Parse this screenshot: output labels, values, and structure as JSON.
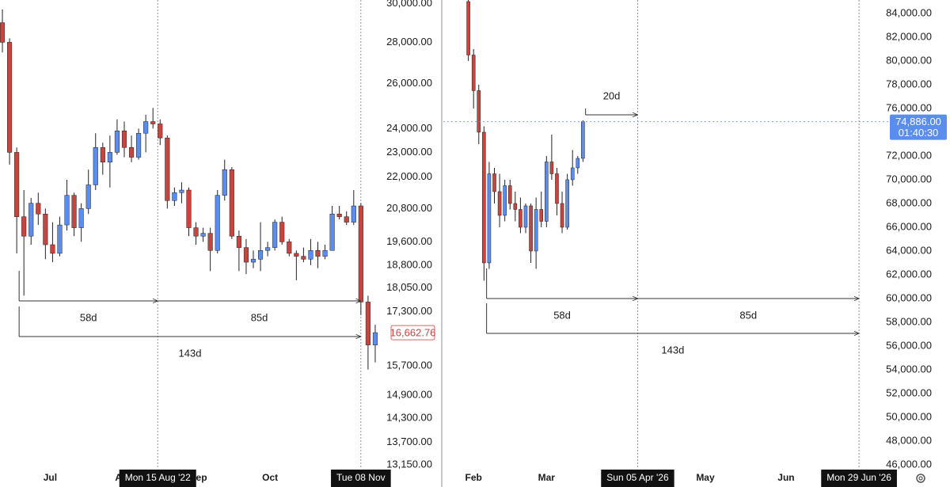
{
  "chart_data": [
    {
      "type": "candlestick",
      "log_scale": true,
      "up_color": "#5b8def",
      "down_color": "#c8453f",
      "xlim": [
        "2022-06-10",
        "2022-11-16"
      ],
      "ylim": [
        13100,
        30200
      ],
      "x": [
        "2022-06-11",
        "2022-06-14",
        "2022-06-17",
        "2022-06-20",
        "2022-06-23",
        "2022-06-26",
        "2022-06-29",
        "2022-07-02",
        "2022-07-05",
        "2022-07-08",
        "2022-07-11",
        "2022-07-14",
        "2022-07-17",
        "2022-07-20",
        "2022-07-23",
        "2022-07-26",
        "2022-07-29",
        "2022-08-01",
        "2022-08-04",
        "2022-08-07",
        "2022-08-10",
        "2022-08-13",
        "2022-08-16",
        "2022-08-19",
        "2022-08-22",
        "2022-08-25",
        "2022-08-28",
        "2022-08-31",
        "2022-09-03",
        "2022-09-06",
        "2022-09-09",
        "2022-09-12",
        "2022-09-15",
        "2022-09-18",
        "2022-09-21",
        "2022-09-24",
        "2022-09-27",
        "2022-09-30",
        "2022-10-03",
        "2022-10-06",
        "2022-10-09",
        "2022-10-12",
        "2022-10-15",
        "2022-10-18",
        "2022-10-21",
        "2022-10-24",
        "2022-10-27",
        "2022-10-30",
        "2022-11-02",
        "2022-11-05",
        "2022-11-08",
        "2022-11-11",
        "2022-11-14"
      ],
      "open": [
        29000,
        28000,
        23000,
        20500,
        19800,
        21000,
        20600,
        19500,
        19200,
        20200,
        21300,
        20100,
        20800,
        21700,
        23200,
        22600,
        23000,
        23900,
        23200,
        22800,
        23800,
        24300,
        24200,
        23600,
        21100,
        21400,
        21500,
        20100,
        19800,
        19900,
        19300,
        21300,
        22300,
        19800,
        19400,
        18900,
        19000,
        19300,
        19400,
        20300,
        19600,
        19200,
        19100,
        19000,
        19300,
        19100,
        19300,
        20600,
        20500,
        20300,
        20900,
        17600,
        16300
      ],
      "high": [
        29700,
        28200,
        23200,
        21500,
        21200,
        21400,
        20800,
        20300,
        20500,
        21900,
        21400,
        21000,
        22300,
        23800,
        23400,
        23700,
        24400,
        24300,
        23700,
        24000,
        24600,
        24900,
        24400,
        23700,
        21600,
        21800,
        21600,
        20300,
        20100,
        20100,
        21500,
        22700,
        22400,
        20000,
        19700,
        19300,
        20300,
        19600,
        20400,
        20500,
        19700,
        19300,
        19400,
        19700,
        19600,
        19500,
        20900,
        20900,
        20700,
        21500,
        21000,
        17800,
        16900
      ],
      "low": [
        27500,
        22500,
        19200,
        17800,
        19500,
        20200,
        19000,
        18900,
        19100,
        20000,
        19800,
        19600,
        20600,
        21500,
        22100,
        21600,
        22900,
        22800,
        22600,
        22700,
        23000,
        24000,
        23300,
        20800,
        20900,
        21000,
        19800,
        19500,
        19600,
        18600,
        19200,
        21100,
        19700,
        18600,
        18500,
        18700,
        18600,
        19100,
        19300,
        19500,
        19100,
        18300,
        18900,
        18800,
        18700,
        19000,
        19300,
        20400,
        20200,
        20200,
        17200,
        15600,
        15800
      ],
      "close": [
        28000,
        23000,
        20500,
        19800,
        21000,
        20600,
        19500,
        19200,
        20200,
        21300,
        20100,
        20800,
        21700,
        23200,
        22600,
        23000,
        23900,
        23200,
        22800,
        23800,
        24300,
        24200,
        23600,
        21100,
        21400,
        21500,
        20100,
        19800,
        19900,
        19300,
        21300,
        22300,
        19800,
        19400,
        18900,
        19000,
        19300,
        19400,
        20300,
        19600,
        19200,
        19100,
        19000,
        19300,
        19100,
        19300,
        20600,
        20500,
        20300,
        20900,
        17600,
        16300,
        16662.76
      ],
      "last_value_label": "16,662.76",
      "yticks": [
        {
          "value": 30000,
          "label": "30,000.00"
        },
        {
          "value": 28000,
          "label": "28,000.00"
        },
        {
          "value": 26000,
          "label": "26,000.00"
        },
        {
          "value": 24000,
          "label": "24,000.00"
        },
        {
          "value": 23000,
          "label": "23,000.00"
        },
        {
          "value": 22000,
          "label": "22,000.00"
        },
        {
          "value": 20800,
          "label": "20,800.00"
        },
        {
          "value": 19600,
          "label": "19,600.00"
        },
        {
          "value": 18800,
          "label": "18,800.00"
        },
        {
          "value": 18050,
          "label": "18,050.00"
        },
        {
          "value": 17300,
          "label": "17,300.00"
        },
        {
          "value": 15700,
          "label": "15,700.00"
        },
        {
          "value": 14900,
          "label": "14,900.00"
        },
        {
          "value": 14300,
          "label": "14,300.00"
        },
        {
          "value": 13700,
          "label": "13,700.00"
        },
        {
          "value": 13150,
          "label": "13,150.00"
        }
      ],
      "xticks": [
        {
          "value": "2022-07-01",
          "label": "Jul"
        },
        {
          "value": "2022-08-01",
          "label": "Aug"
        },
        {
          "value": "2022-09-01",
          "label": "Sep"
        },
        {
          "value": "2022-10-01",
          "label": "Oct"
        }
      ],
      "crosshair_labels": [
        {
          "value": "2022-08-15",
          "label": "Mon 15 Aug '22"
        },
        {
          "value": "2022-11-08",
          "label": "Tue 08 Nov"
        }
      ],
      "measurements": [
        {
          "from": "2022-06-18",
          "to": "2022-08-15",
          "label": "58d"
        },
        {
          "from": "2022-08-15",
          "to": "2022-11-08",
          "label": "85d"
        },
        {
          "from": "2022-06-18",
          "to": "2022-11-08",
          "label": "143d"
        }
      ]
    },
    {
      "type": "candlestick",
      "log_scale": false,
      "up_color": "#5b8def",
      "down_color": "#c8453f",
      "xlim": [
        "2026-01-21",
        "2026-07-09"
      ],
      "ylim": [
        45800,
        85130
      ],
      "x": [
        "2026-01-30",
        "2026-02-01",
        "2026-02-03",
        "2026-02-05",
        "2026-02-07",
        "2026-02-09",
        "2026-02-11",
        "2026-02-13",
        "2026-02-15",
        "2026-02-17",
        "2026-02-19",
        "2026-02-21",
        "2026-02-23",
        "2026-02-25",
        "2026-02-27",
        "2026-03-01",
        "2026-03-03",
        "2026-03-05",
        "2026-03-07",
        "2026-03-09",
        "2026-03-11",
        "2026-03-13",
        "2026-03-15"
      ],
      "open": [
        85000,
        80500,
        77500,
        74000,
        63000,
        70500,
        69000,
        67000,
        69500,
        68000,
        67500,
        66000,
        67800,
        64000,
        67500,
        66500,
        71500,
        70500,
        68000,
        66000,
        70000,
        71000,
        71800
      ],
      "high": [
        85500,
        81000,
        78000,
        74500,
        71500,
        71000,
        70500,
        70000,
        70000,
        69000,
        68500,
        68000,
        68000,
        68500,
        69000,
        72000,
        73800,
        71000,
        69000,
        70500,
        72500,
        72000,
        75000
      ],
      "low": [
        80000,
        76000,
        73000,
        61500,
        62500,
        68000,
        66000,
        66500,
        67500,
        66500,
        65500,
        65500,
        63000,
        62500,
        66000,
        66000,
        70000,
        67000,
        65500,
        65800,
        69500,
        70500,
        71500
      ],
      "close": [
        80500,
        77500,
        74000,
        63000,
        70500,
        69000,
        67000,
        69500,
        68000,
        67500,
        66000,
        67800,
        64000,
        67500,
        66500,
        71500,
        70500,
        68000,
        66000,
        70000,
        71000,
        71800,
        74886
      ],
      "last_value_label": "74,886.00",
      "countdown": "01:40:30",
      "yticks": [
        {
          "value": 84000,
          "label": "84,000.00"
        },
        {
          "value": 82000,
          "label": "82,000.00"
        },
        {
          "value": 80000,
          "label": "80,000.00"
        },
        {
          "value": 78000,
          "label": "78,000.00"
        },
        {
          "value": 76000,
          "label": "76,000.00"
        },
        {
          "value": 72000,
          "label": "72,000.00"
        },
        {
          "value": 70000,
          "label": "70,000.00"
        },
        {
          "value": 68000,
          "label": "68,000.00"
        },
        {
          "value": 66000,
          "label": "66,000.00"
        },
        {
          "value": 64000,
          "label": "64,000.00"
        },
        {
          "value": 62000,
          "label": "62,000.00"
        },
        {
          "value": 60000,
          "label": "60,000.00"
        },
        {
          "value": 58000,
          "label": "58,000.00"
        },
        {
          "value": 56000,
          "label": "56,000.00"
        },
        {
          "value": 54000,
          "label": "54,000.00"
        },
        {
          "value": 52000,
          "label": "52,000.00"
        },
        {
          "value": 50000,
          "label": "50,000.00"
        },
        {
          "value": 48000,
          "label": "48,000.00"
        },
        {
          "value": 46000,
          "label": "46,000.00"
        }
      ],
      "xticks": [
        {
          "value": "2026-02-01",
          "label": "Feb"
        },
        {
          "value": "2026-03-01",
          "label": "Mar"
        },
        {
          "value": "2026-05-01",
          "label": "May"
        },
        {
          "value": "2026-06-01",
          "label": "Jun"
        }
      ],
      "crosshair_labels": [
        {
          "value": "2026-04-05",
          "label": "Sun 05 Apr '26"
        },
        {
          "value": "2026-06-29",
          "label": "Mon 29 Jun '26"
        }
      ],
      "measurements": [
        {
          "from": "2026-02-06",
          "to": "2026-04-05",
          "label": "58d"
        },
        {
          "from": "2026-04-05",
          "to": "2026-06-29",
          "label": "85d"
        },
        {
          "from": "2026-02-06",
          "to": "2026-06-29",
          "label": "143d"
        },
        {
          "from": "2026-03-16",
          "to": "2026-04-05",
          "label": "20d"
        }
      ]
    }
  ]
}
